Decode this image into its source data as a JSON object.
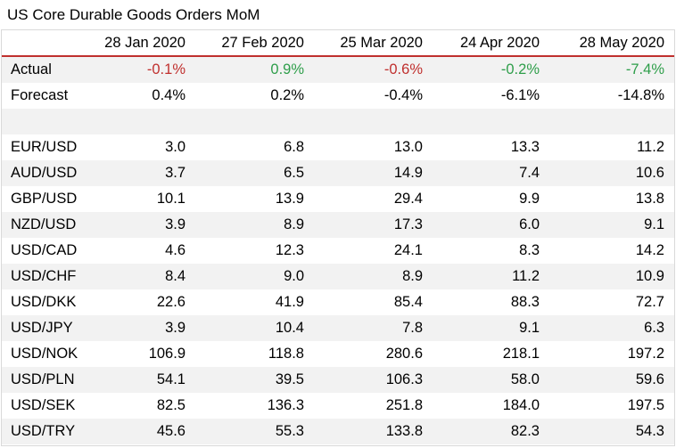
{
  "title": "US Core Durable Goods Orders MoM",
  "columns": [
    "28 Jan 2020",
    "27 Feb 2020",
    "25 Mar 2020",
    "24 Apr 2020",
    "28 May 2020"
  ],
  "actual": {
    "label": "Actual",
    "values": [
      "-0.1%",
      "0.9%",
      "-0.6%",
      "-0.2%",
      "-7.4%"
    ],
    "colors": [
      "#c0302e",
      "#2e9e4a",
      "#c0302e",
      "#2e9e4a",
      "#2e9e4a"
    ]
  },
  "forecast": {
    "label": "Forecast",
    "values": [
      "0.4%",
      "0.2%",
      "-0.4%",
      "-6.1%",
      "-14.8%"
    ]
  },
  "pairs": [
    {
      "label": "EUR/USD",
      "values": [
        "3.0",
        "6.8",
        "13.0",
        "13.3",
        "11.2"
      ]
    },
    {
      "label": "AUD/USD",
      "values": [
        "3.7",
        "6.5",
        "14.9",
        "7.4",
        "10.6"
      ]
    },
    {
      "label": "GBP/USD",
      "values": [
        "10.1",
        "13.9",
        "29.4",
        "9.9",
        "13.8"
      ]
    },
    {
      "label": "NZD/USD",
      "values": [
        "3.9",
        "8.9",
        "17.3",
        "6.0",
        "9.1"
      ]
    },
    {
      "label": "USD/CAD",
      "values": [
        "4.6",
        "12.3",
        "24.1",
        "8.3",
        "14.2"
      ]
    },
    {
      "label": "USD/CHF",
      "values": [
        "8.4",
        "9.0",
        "8.9",
        "11.2",
        "10.9"
      ]
    },
    {
      "label": "USD/DKK",
      "values": [
        "22.6",
        "41.9",
        "85.4",
        "88.3",
        "72.7"
      ]
    },
    {
      "label": "USD/JPY",
      "values": [
        "3.9",
        "10.4",
        "7.8",
        "9.1",
        "6.3"
      ]
    },
    {
      "label": "USD/NOK",
      "values": [
        "106.9",
        "118.8",
        "280.6",
        "218.1",
        "197.2"
      ]
    },
    {
      "label": "USD/PLN",
      "values": [
        "54.1",
        "39.5",
        "106.3",
        "58.0",
        "59.6"
      ]
    },
    {
      "label": "USD/SEK",
      "values": [
        "82.5",
        "136.3",
        "251.8",
        "184.0",
        "197.5"
      ]
    },
    {
      "label": "USD/TRY",
      "values": [
        "45.6",
        "55.3",
        "133.8",
        "82.3",
        "54.3"
      ]
    }
  ]
}
